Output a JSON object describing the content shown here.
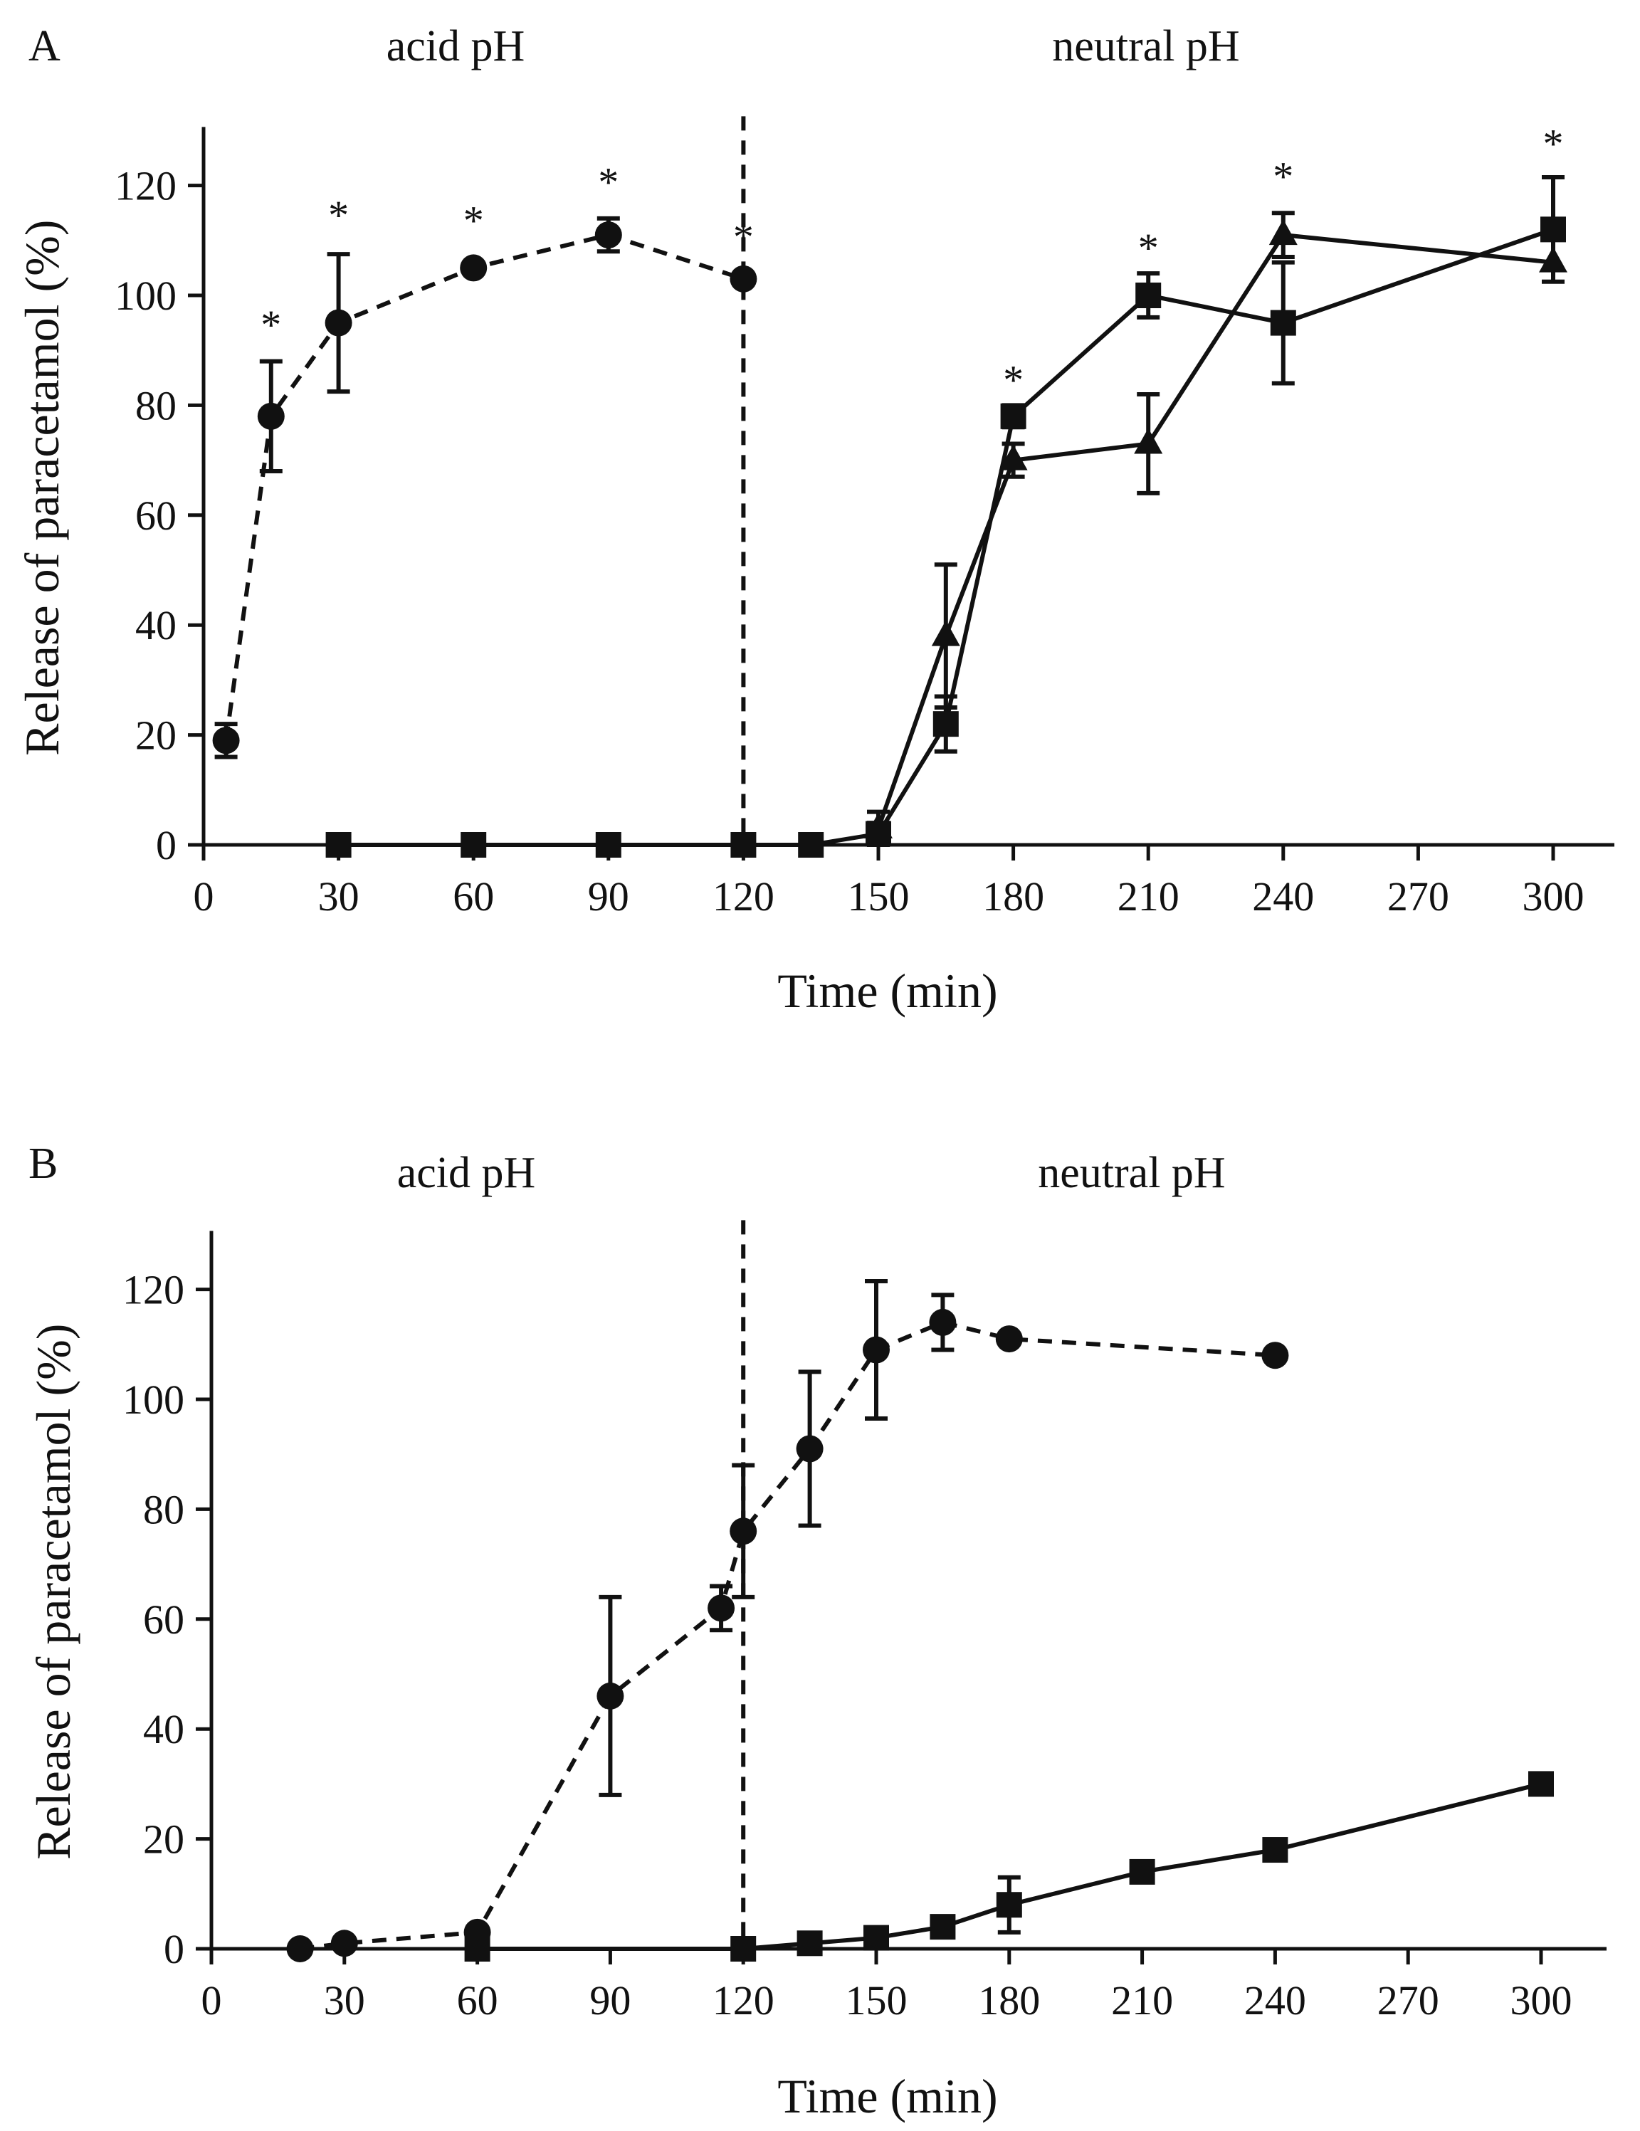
{
  "chart_data": [
    {
      "type": "line",
      "panel_label": "A",
      "region_labels": {
        "left": "acid pH",
        "right": "neutral pH"
      },
      "divider_x": 120,
      "xlabel": "Time (min)",
      "ylabel": "Release of paracetamol (%)",
      "xlim": [
        0,
        315
      ],
      "ylim": [
        0,
        130
      ],
      "xticks": [
        0,
        30,
        60,
        90,
        120,
        150,
        180,
        210,
        240,
        270,
        300
      ],
      "yticks": [
        0,
        20,
        40,
        60,
        80,
        100,
        120
      ],
      "series": [
        {
          "name": "circle",
          "marker": "circle",
          "line": "dashed",
          "points": [
            {
              "x": 5,
              "y": 19,
              "err": 3
            },
            {
              "x": 15,
              "y": 78,
              "err": 10
            },
            {
              "x": 30,
              "y": 95,
              "err": 12.5
            },
            {
              "x": 60,
              "y": 105,
              "err": 0
            },
            {
              "x": 90,
              "y": 111,
              "err": 3
            },
            {
              "x": 120,
              "y": 103,
              "err": 0
            }
          ]
        },
        {
          "name": "square",
          "marker": "square",
          "line": "solid",
          "points": [
            {
              "x": 30,
              "y": 0,
              "err": 0
            },
            {
              "x": 60,
              "y": 0,
              "err": 0
            },
            {
              "x": 90,
              "y": 0,
              "err": 0
            },
            {
              "x": 120,
              "y": 0,
              "err": 0
            },
            {
              "x": 135,
              "y": 0,
              "err": 0
            },
            {
              "x": 150,
              "y": 2,
              "err": 2
            },
            {
              "x": 165,
              "y": 22,
              "err": 5
            },
            {
              "x": 180,
              "y": 78,
              "err": 2
            },
            {
              "x": 210,
              "y": 100,
              "err": 4
            },
            {
              "x": 240,
              "y": 95,
              "err": 11
            },
            {
              "x": 300,
              "y": 112,
              "err": 9.5
            }
          ]
        },
        {
          "name": "triangle",
          "marker": "triangle",
          "line": "solid",
          "points": [
            {
              "x": 150,
              "y": 3,
              "err": 3
            },
            {
              "x": 165,
              "y": 38,
              "err": 13
            },
            {
              "x": 180,
              "y": 70,
              "err": 3
            },
            {
              "x": 210,
              "y": 73,
              "err": 9
            },
            {
              "x": 240,
              "y": 111,
              "err": 4
            },
            {
              "x": 300,
              "y": 106,
              "err": 0
            }
          ]
        }
      ],
      "annotations": [
        {
          "text": "*",
          "x": 15,
          "y": 97
        },
        {
          "text": "*",
          "x": 30,
          "y": 117
        },
        {
          "text": "*",
          "x": 60,
          "y": 116
        },
        {
          "text": "*",
          "x": 90,
          "y": 123
        },
        {
          "text": "*",
          "x": 120,
          "y": 113
        },
        {
          "text": "*",
          "x": 180,
          "y": 87
        },
        {
          "text": "*",
          "x": 210,
          "y": 111
        },
        {
          "text": "*",
          "x": 240,
          "y": 124
        },
        {
          "text": "*",
          "x": 300,
          "y": 130
        }
      ]
    },
    {
      "type": "line",
      "panel_label": "B",
      "region_labels": {
        "left": "acid pH",
        "right": "neutral pH"
      },
      "divider_x": 120,
      "xlabel": "Time (min)",
      "ylabel": "Release of paracetamol  (%)",
      "xlim": [
        0,
        315
      ],
      "ylim": [
        0,
        130
      ],
      "xticks": [
        0,
        30,
        60,
        90,
        120,
        150,
        180,
        210,
        240,
        270,
        300
      ],
      "yticks": [
        0,
        20,
        40,
        60,
        80,
        100,
        120
      ],
      "series": [
        {
          "name": "circle",
          "marker": "circle",
          "line": "dashed",
          "points": [
            {
              "x": 20,
              "y": 0,
              "err": 0
            },
            {
              "x": 30,
              "y": 1,
              "err": 0
            },
            {
              "x": 60,
              "y": 3,
              "err": 0
            },
            {
              "x": 90,
              "y": 46,
              "err": 18
            },
            {
              "x": 115,
              "y": 62,
              "err": 4
            },
            {
              "x": 120,
              "y": 76,
              "err": 12
            },
            {
              "x": 135,
              "y": 91,
              "err": 14
            },
            {
              "x": 150,
              "y": 109,
              "err": 12.5
            },
            {
              "x": 165,
              "y": 114,
              "err": 5
            },
            {
              "x": 180,
              "y": 111,
              "err": 0
            },
            {
              "x": 240,
              "y": 108,
              "err": 0
            }
          ]
        },
        {
          "name": "square",
          "marker": "square",
          "line": "solid",
          "points": [
            {
              "x": 60,
              "y": 0,
              "err": 0
            },
            {
              "x": 120,
              "y": 0,
              "err": 0
            },
            {
              "x": 135,
              "y": 1,
              "err": 0
            },
            {
              "x": 150,
              "y": 2,
              "err": 0
            },
            {
              "x": 165,
              "y": 4,
              "err": 0
            },
            {
              "x": 180,
              "y": 8,
              "err": 5
            },
            {
              "x": 210,
              "y": 14,
              "err": 0
            },
            {
              "x": 240,
              "y": 18,
              "err": 0
            },
            {
              "x": 300,
              "y": 30,
              "err": 0
            }
          ]
        }
      ],
      "annotations": []
    }
  ]
}
